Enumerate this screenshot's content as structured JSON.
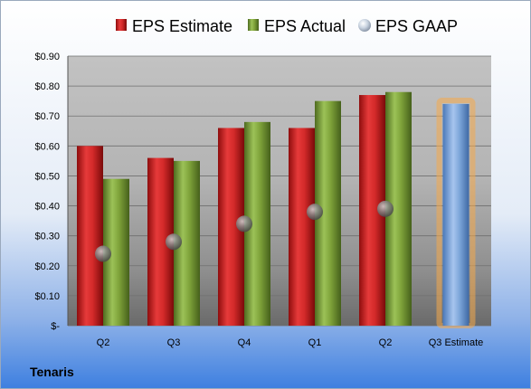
{
  "company": "Tenaris",
  "colors": {
    "estimate": "#d42a2a",
    "actual": "#7fa33a",
    "gaap": "#8a8a8a",
    "projection": "#7aa4d8",
    "projection_glow": "#f5a94a"
  },
  "chart_data": {
    "type": "bar",
    "categories": [
      "Q2",
      "Q3",
      "Q4",
      "Q1",
      "Q2",
      "Q3 Estimate"
    ],
    "series": [
      {
        "name": "EPS Estimate",
        "values": [
          0.6,
          0.56,
          0.66,
          0.66,
          0.77,
          null
        ]
      },
      {
        "name": "EPS Actual",
        "values": [
          0.49,
          0.55,
          0.68,
          0.75,
          0.78,
          null
        ]
      },
      {
        "name": "EPS GAAP",
        "values": [
          0.24,
          0.28,
          0.34,
          0.38,
          0.39,
          null
        ]
      }
    ],
    "projection": {
      "category": "Q3 Estimate",
      "value": 0.74
    },
    "ylim": [
      0,
      0.9
    ],
    "y_ticks": [
      "$-",
      "$0.10",
      "$0.20",
      "$0.30",
      "$0.40",
      "$0.50",
      "$0.60",
      "$0.70",
      "$0.80",
      "$0.90"
    ],
    "grid": true,
    "legend_position": "top"
  }
}
